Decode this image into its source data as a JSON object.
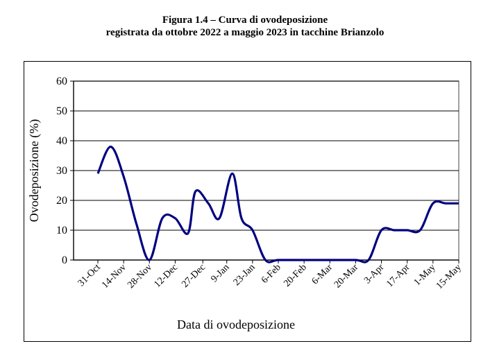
{
  "figure": {
    "title_line1": "Figura 1.4 – Curva di ovodeposizione",
    "title_line2": "registrata da ottobre 2022 a maggio 2023 in tacchine Brianzolo"
  },
  "chart_data": {
    "type": "line",
    "title": "Figura 1.4 – Curva di ovodeposizione registrata da ottobre 2022 a maggio 2023 in tacchine Brianzolo",
    "xlabel": "Data di ovodeposizione",
    "ylabel": "Ovodeposizione (%)",
    "ylim": [
      0,
      60
    ],
    "yticks": [
      0,
      10,
      20,
      30,
      40,
      50,
      60
    ],
    "grid": "horizontal",
    "categories": [
      "31-Oct",
      "14-Nov",
      "28-Nov",
      "12-Dec",
      "27-Dec",
      "9-Jan",
      "23-Jan",
      "6-Feb",
      "20-Feb",
      "6-Mar",
      "20-Mar",
      "3-Apr",
      "17-Apr",
      "1-May",
      "15-May"
    ],
    "series": [
      {
        "color": "#000080",
        "points": [
          {
            "x": "31-Oct",
            "y": 29
          },
          {
            "x": "7-Nov",
            "y": 38
          },
          {
            "x": "14-Nov",
            "y": 28
          },
          {
            "x": "21-Nov",
            "y": 12
          },
          {
            "x": "28-Nov",
            "y": 0
          },
          {
            "x": "5-Dec",
            "y": 14
          },
          {
            "x": "12-Dec",
            "y": 14
          },
          {
            "x": "19-Dec",
            "y": 9
          },
          {
            "x": "23-Dec",
            "y": 23
          },
          {
            "x": "30-Dec",
            "y": 19
          },
          {
            "x": "5-Jan",
            "y": 14
          },
          {
            "x": "12-Jan",
            "y": 29
          },
          {
            "x": "17-Jan",
            "y": 14
          },
          {
            "x": "23-Jan",
            "y": 10
          },
          {
            "x": "30-Jan",
            "y": 0
          },
          {
            "x": "6-Feb",
            "y": 0
          },
          {
            "x": "20-Feb",
            "y": 0
          },
          {
            "x": "6-Mar",
            "y": 0
          },
          {
            "x": "20-Mar",
            "y": 0
          },
          {
            "x": "27-Mar",
            "y": 0
          },
          {
            "x": "3-Apr",
            "y": 10
          },
          {
            "x": "10-Apr",
            "y": 10
          },
          {
            "x": "17-Apr",
            "y": 10
          },
          {
            "x": "24-Apr",
            "y": 10
          },
          {
            "x": "1-May",
            "y": 19
          },
          {
            "x": "8-May",
            "y": 19
          },
          {
            "x": "15-May",
            "y": 19
          }
        ]
      }
    ]
  }
}
